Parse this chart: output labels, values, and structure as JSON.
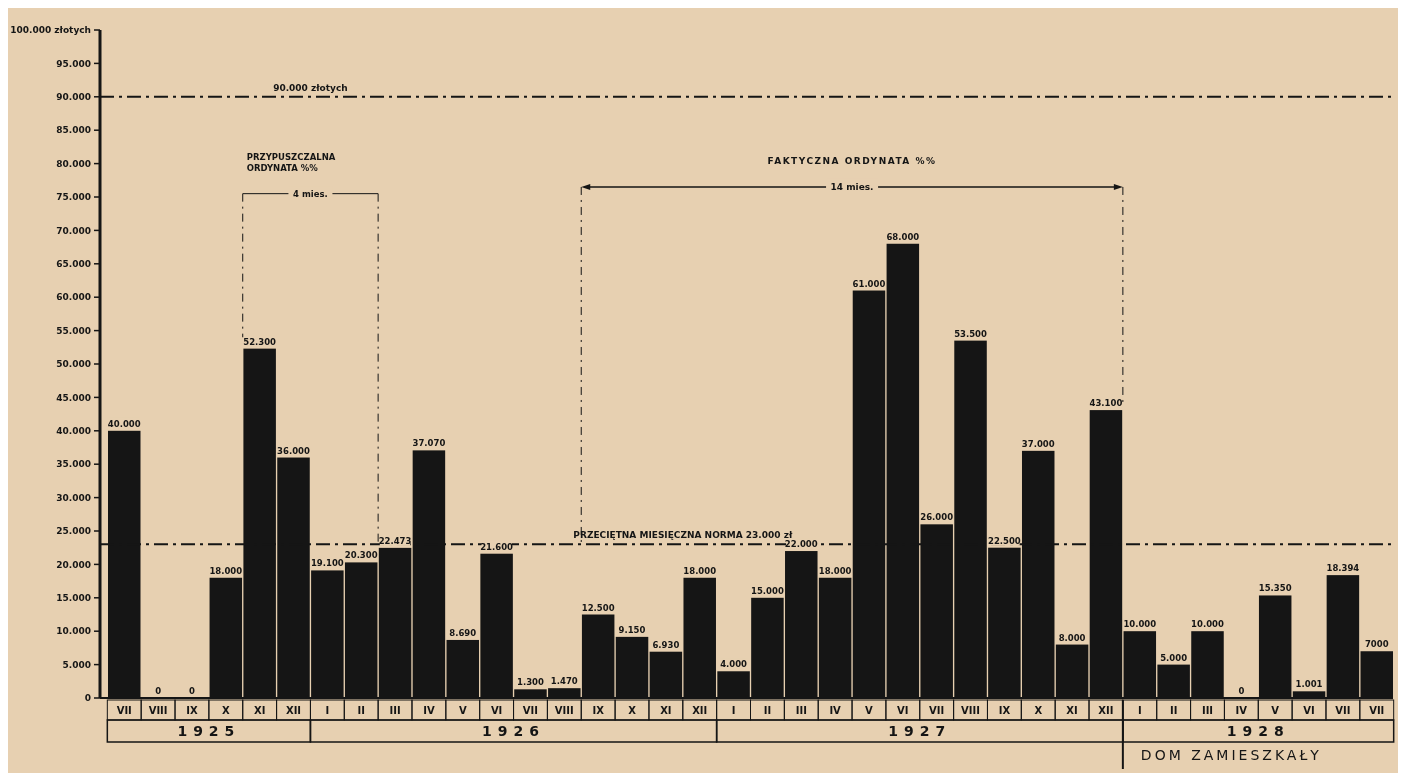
{
  "chart_data": {
    "type": "bar",
    "categories": [
      "VII",
      "VIII",
      "IX",
      "X",
      "XI",
      "XII",
      "I",
      "II",
      "III",
      "IV",
      "V",
      "VI",
      "VII",
      "VIII",
      "IX",
      "X",
      "XI",
      "XII",
      "I",
      "II",
      "III",
      "IV",
      "V",
      "VI",
      "VII",
      "VIII",
      "IX",
      "X",
      "XI",
      "XII",
      "I",
      "II",
      "III",
      "IV",
      "V",
      "VI",
      "VII",
      "VII"
    ],
    "values": [
      40000,
      0,
      0,
      18000,
      52300,
      36000,
      19100,
      20300,
      22473,
      37070,
      8690,
      21600,
      1300,
      1470,
      12500,
      9150,
      6930,
      18000,
      4000,
      15000,
      22000,
      18000,
      61000,
      68000,
      26000,
      53500,
      22500,
      37000,
      8000,
      43100,
      10000,
      5000,
      10000,
      0,
      15350,
      1001,
      18394,
      7000
    ],
    "value_labels": [
      "40.000",
      "0",
      "0",
      "18.000",
      "52.300",
      "36.000",
      "19.100",
      "20.300",
      "22.473",
      "37.070",
      "8.690",
      "21.600",
      "1.300",
      "1.470",
      "12.500",
      "9.150",
      "6.930",
      "18.000",
      "4.000",
      "15.000",
      "22.000",
      "18.000",
      "61.000",
      "68.000",
      "26.000",
      "53.500",
      "22.500",
      "37.000",
      "8.000",
      "43.100",
      "10.000",
      "5.000",
      "10.000",
      "0",
      "15.350",
      "1.001",
      "18.394",
      "7000"
    ],
    "color": "#151515",
    "ylim": [
      0,
      100000
    ],
    "yticks": [
      {
        "value": 0,
        "label": "0"
      },
      {
        "value": 5000,
        "label": "5.000"
      },
      {
        "value": 10000,
        "label": "10.000"
      },
      {
        "value": 15000,
        "label": "15.000"
      },
      {
        "value": 20000,
        "label": "20.000"
      },
      {
        "value": 25000,
        "label": "25.000"
      },
      {
        "value": 30000,
        "label": "30.000"
      },
      {
        "value": 35000,
        "label": "35.000"
      },
      {
        "value": 40000,
        "label": "40.000"
      },
      {
        "value": 45000,
        "label": "45.000"
      },
      {
        "value": 50000,
        "label": "50.000"
      },
      {
        "value": 55000,
        "label": "55.000"
      },
      {
        "value": 60000,
        "label": "60.000"
      },
      {
        "value": 65000,
        "label": "65.000"
      },
      {
        "value": 70000,
        "label": "70.000"
      },
      {
        "value": 75000,
        "label": "75.000"
      },
      {
        "value": 80000,
        "label": "80.000"
      },
      {
        "value": 85000,
        "label": "85.000"
      },
      {
        "value": 90000,
        "label": "90.000"
      },
      {
        "value": 95000,
        "label": "95.000"
      },
      {
        "value": 100000,
        "label": "100.000 złotych"
      }
    ],
    "ref_lines": [
      {
        "axis": "y",
        "value": 90000,
        "label": "90.000 złotych",
        "color": "#151515",
        "line_style": "dashed"
      },
      {
        "axis": "y",
        "value": 23000,
        "label": "PRZECIĘTNA MIESIĘCZNA NORMA 23.000 zł",
        "color": "#151515",
        "line_style": "dashed"
      }
    ],
    "annotations": [
      "PRZYPUSZCZALNA ORDYNATA %%",
      "4 mies.",
      "FAKTYCZNA ORDYNATA %%",
      "14 mies.",
      "1925",
      "1926",
      "1927",
      "1928",
      "DOM ZAMIESZKAŁY"
    ],
    "grid": false
  }
}
